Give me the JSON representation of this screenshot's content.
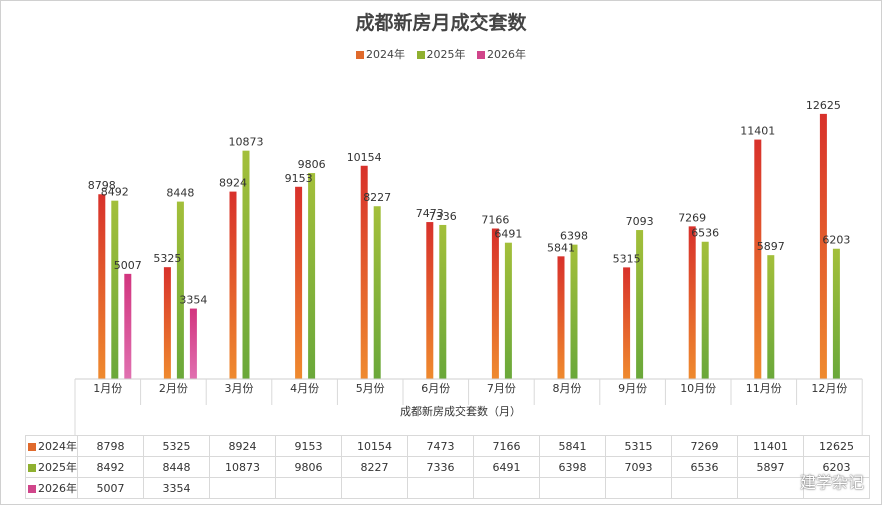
{
  "chart_data": {
    "type": "bar",
    "title": "成都新房月成交套数",
    "xlabel": "成都新房成交套数（月）",
    "ylabel": "",
    "ylim": [
      0,
      14000
    ],
    "grid": false,
    "legend_position": "top",
    "categories": [
      "1月份",
      "2月份",
      "3月份",
      "4月份",
      "5月份",
      "6月份",
      "7月份",
      "8月份",
      "9月份",
      "10月份",
      "11月份",
      "12月份"
    ],
    "series": [
      {
        "name": "2024年",
        "color": "#d9352a",
        "values": [
          8798,
          5325,
          8924,
          9153,
          10154,
          7473,
          7166,
          5841,
          5315,
          7269,
          11401,
          12625
        ]
      },
      {
        "name": "2025年",
        "color": "#8fb030",
        "values": [
          8492,
          8448,
          10873,
          9806,
          8227,
          7336,
          6491,
          6398,
          7093,
          6536,
          5897,
          6203
        ]
      },
      {
        "name": "2026年",
        "color": "#d0458a",
        "values": [
          5007,
          3354,
          null,
          null,
          null,
          null,
          null,
          null,
          null,
          null,
          null,
          null
        ]
      }
    ]
  },
  "watermark": "建学杂记"
}
